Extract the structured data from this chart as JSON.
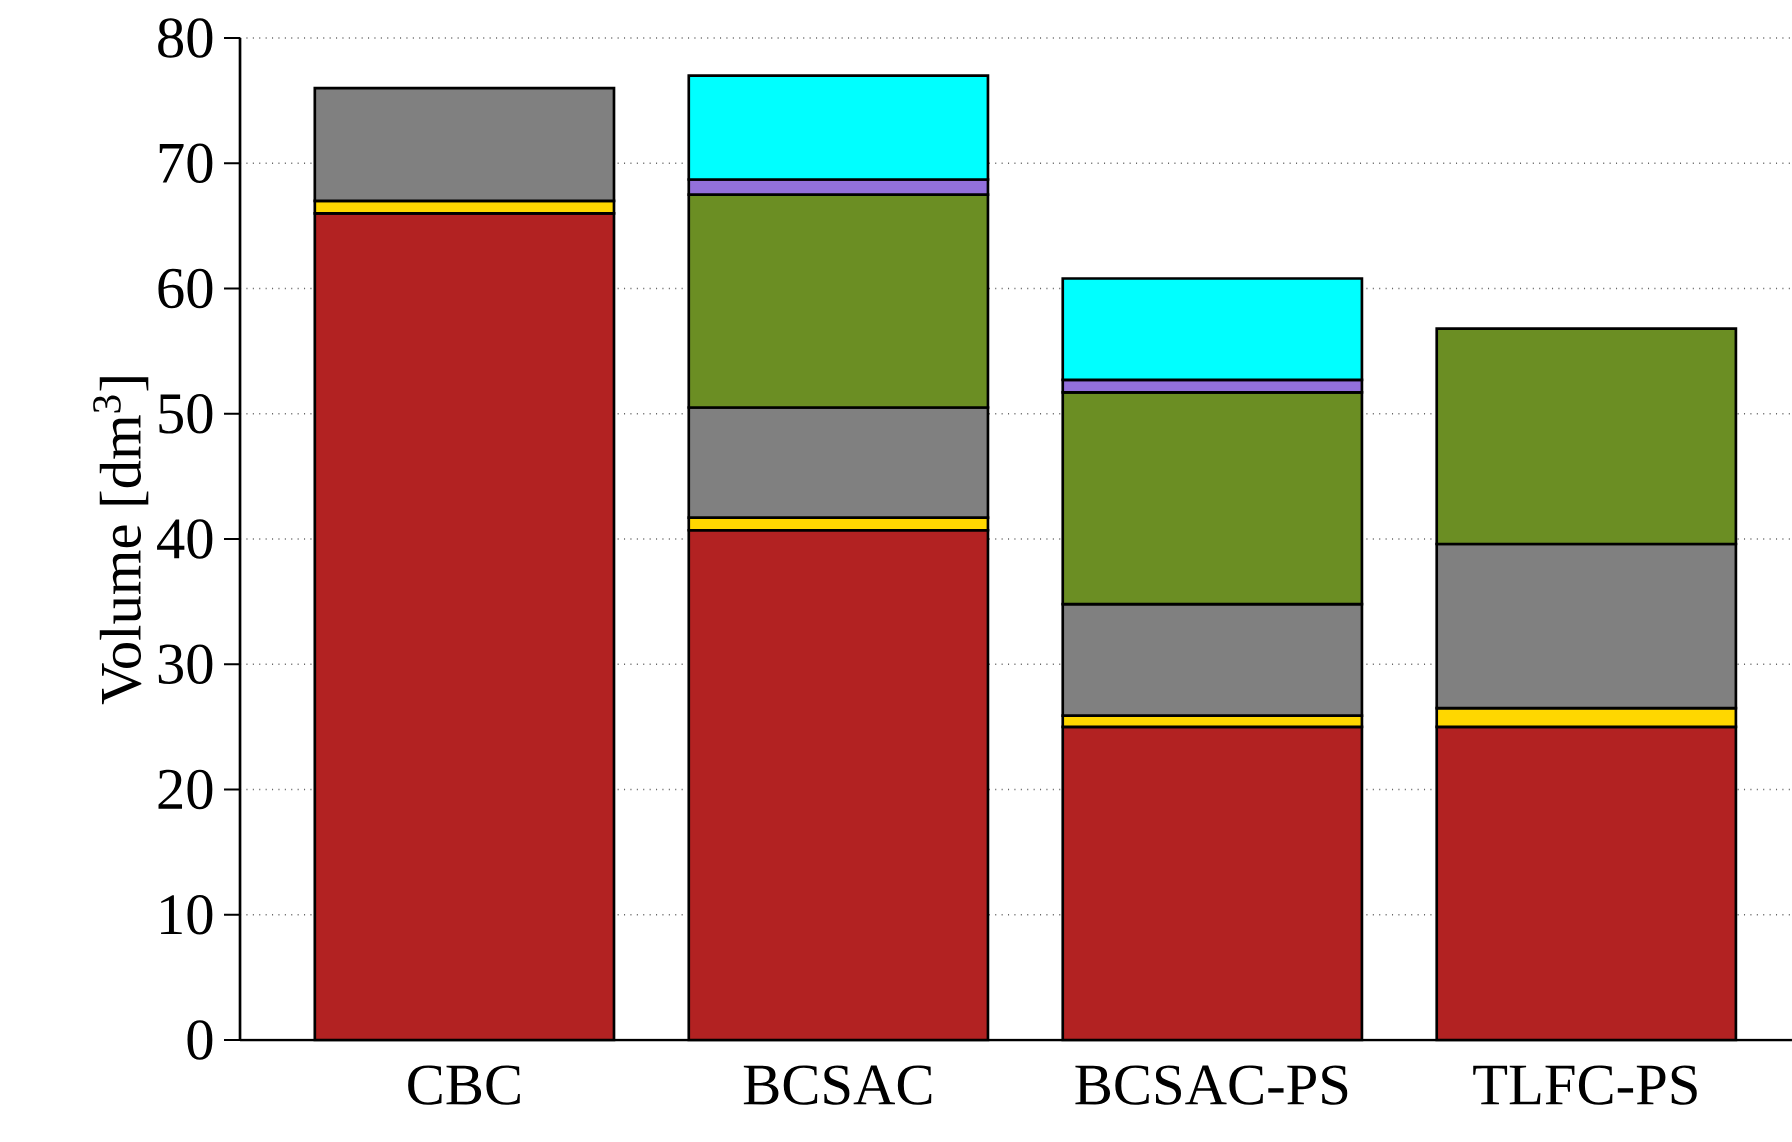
{
  "chart_data": {
    "type": "bar",
    "stacked": true,
    "ylabel": "Volume [dm$^{3}$]",
    "categories": [
      "CBC",
      "BCSAC",
      "BCSAC-PS",
      "TLFC-PS"
    ],
    "series": [
      {
        "color": "#b22222",
        "values": [
          66.0,
          40.7,
          25.0,
          25.0
        ]
      },
      {
        "color": "#ffd700",
        "values": [
          1.0,
          1.0,
          0.9,
          1.5
        ]
      },
      {
        "color": "#808080",
        "values": [
          9.0,
          8.8,
          8.9,
          13.1
        ]
      },
      {
        "color": "#6b8e23",
        "values": [
          null,
          17.0,
          16.9,
          17.2
        ]
      },
      {
        "color": "#9370db",
        "values": [
          null,
          1.2,
          1.0,
          null
        ]
      },
      {
        "color": "#00ffff",
        "values": [
          null,
          8.3,
          8.1,
          null
        ]
      }
    ],
    "ylim": [
      0,
      80
    ],
    "yticks": [
      0,
      10,
      20,
      30,
      40,
      50,
      60,
      70,
      80
    ],
    "grid": "y"
  }
}
